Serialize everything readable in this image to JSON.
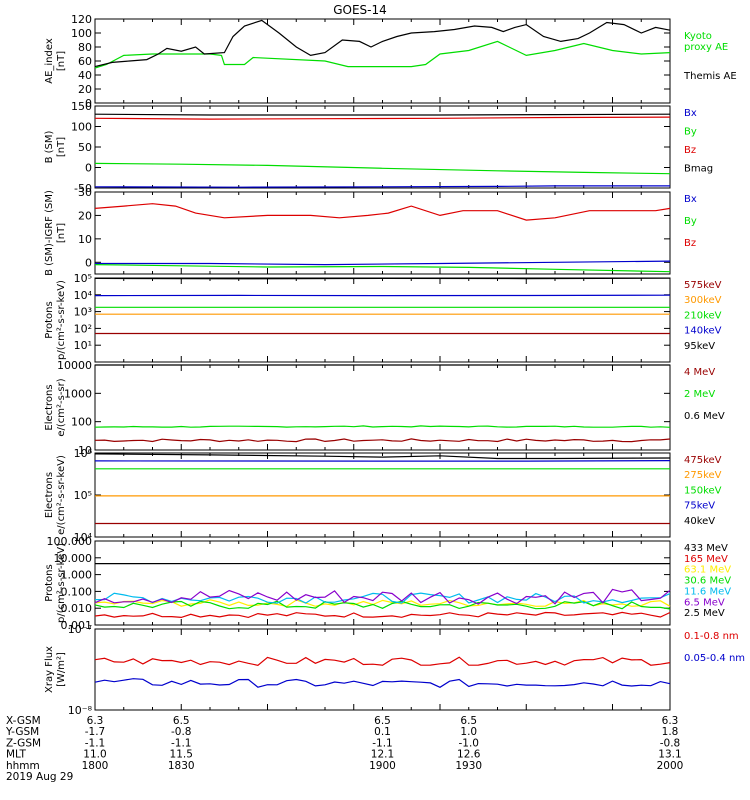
{
  "title": "GOES-14",
  "colors": {
    "black": "#000000",
    "red": "#dd0000",
    "green": "#00dd00",
    "blue": "#0000cc",
    "orange": "#ff9900",
    "yellow": "#ffee00",
    "cyan": "#00bbee",
    "purple": "#8800cc",
    "darkred": "#990000"
  },
  "chart_data": [
    {
      "type": "line",
      "id": "ae",
      "ylabel": [
        "AE_index",
        "[nT]"
      ],
      "ylim": [
        0,
        120
      ],
      "yticks": [
        "0",
        "20",
        "40",
        "60",
        "80",
        "100",
        "120"
      ],
      "xlim": [
        1800,
        2000
      ],
      "series": [
        {
          "name": "Kyoto proxy AE",
          "label_lines": [
            "Kyoto",
            "proxy AE"
          ],
          "color": "green",
          "x": [
            1800,
            1804,
            1810,
            1820,
            1840,
            1844,
            1845,
            1852,
            1855,
            1880,
            1888,
            1900,
            1910,
            1915,
            1920,
            1930,
            1940,
            1944,
            1950,
            1960,
            1970,
            1980,
            1990,
            2000
          ],
          "y": [
            50,
            55,
            68,
            70,
            70,
            68,
            55,
            55,
            65,
            60,
            52,
            52,
            52,
            55,
            70,
            75,
            88,
            80,
            68,
            75,
            85,
            75,
            70,
            72
          ]
        },
        {
          "name": "Themis AE",
          "label_lines": [
            "Themis AE"
          ],
          "color": "black",
          "x": [
            1800,
            1806,
            1812,
            1818,
            1822,
            1825,
            1830,
            1835,
            1838,
            1845,
            1848,
            1852,
            1858,
            1864,
            1870,
            1875,
            1880,
            1886,
            1892,
            1896,
            1900,
            1905,
            1910,
            1918,
            1925,
            1932,
            1938,
            1942,
            1946,
            1950,
            1956,
            1962,
            1968,
            1972,
            1978,
            1984,
            1990,
            1995,
            2000
          ],
          "y": [
            52,
            58,
            60,
            62,
            70,
            78,
            74,
            80,
            70,
            72,
            95,
            110,
            118,
            100,
            80,
            68,
            72,
            90,
            88,
            80,
            88,
            95,
            100,
            102,
            105,
            110,
            108,
            102,
            108,
            112,
            95,
            88,
            92,
            100,
            115,
            112,
            100,
            108,
            104
          ]
        }
      ]
    },
    {
      "type": "line",
      "id": "bsm",
      "ylabel": [
        "B (SM)",
        "[nT]"
      ],
      "ylim": [
        -50,
        150
      ],
      "yticks": [
        "-50",
        "0",
        "50",
        "100",
        "150"
      ],
      "xlim": [
        1800,
        2000
      ],
      "series": [
        {
          "name": "Bx",
          "color": "blue",
          "x": [
            1800,
            1850,
            1900,
            1940,
            1960,
            2000
          ],
          "y": [
            -47,
            -48,
            -47,
            -46,
            -45,
            -45
          ]
        },
        {
          "name": "By",
          "color": "green",
          "x": [
            1800,
            1830,
            1860,
            1900,
            1940,
            1970,
            2000
          ],
          "y": [
            10,
            8,
            5,
            -2,
            -8,
            -12,
            -15
          ]
        },
        {
          "name": "Bz",
          "color": "red",
          "x": [
            1800,
            1840,
            1880,
            1920,
            1960,
            2000
          ],
          "y": [
            120,
            118,
            119,
            120,
            122,
            123
          ]
        },
        {
          "name": "Bmag",
          "color": "black",
          "x": [
            1800,
            1840,
            1880,
            1920,
            1960,
            2000
          ],
          "y": [
            130,
            128,
            128,
            128,
            129,
            130
          ]
        }
      ]
    },
    {
      "type": "line",
      "id": "bigrf",
      "ylabel": [
        "B (SM)-IGRF (SM)",
        "[nT]"
      ],
      "ylim": [
        -5,
        30
      ],
      "yticks": [
        "0",
        "10",
        "20",
        "30"
      ],
      "xlim": [
        1800,
        2000
      ],
      "series": [
        {
          "name": "Bx",
          "color": "blue",
          "x": [
            1800,
            1840,
            1880,
            1920,
            1960,
            2000
          ],
          "y": [
            -0.5,
            -0.5,
            -1,
            -0.5,
            0,
            0.5
          ]
        },
        {
          "name": "By",
          "color": "green",
          "x": [
            1800,
            1830,
            1860,
            1900,
            1930,
            1960,
            2000
          ],
          "y": [
            -1,
            -1.5,
            -2,
            -1.8,
            -2.2,
            -3,
            -4
          ]
        },
        {
          "name": "Bz",
          "color": "red",
          "x": [
            1800,
            1810,
            1820,
            1828,
            1835,
            1845,
            1860,
            1875,
            1885,
            1895,
            1902,
            1910,
            1920,
            1928,
            1940,
            1950,
            1960,
            1972,
            1985,
            1995,
            2000
          ],
          "y": [
            23,
            24,
            25,
            24,
            21,
            19,
            20,
            20,
            19,
            20,
            21,
            24,
            20,
            22,
            22,
            18,
            19,
            22,
            22,
            22,
            23
          ]
        }
      ]
    },
    {
      "type": "line",
      "id": "protons-low",
      "log": true,
      "ylabel": [
        "Protons",
        "p/(cm²-s-sr-keV)"
      ],
      "ylim": [
        1,
        100000
      ],
      "yticks": [
        {
          "v": 10,
          "t": "10¹"
        },
        {
          "v": 100,
          "t": "10²"
        },
        {
          "v": 1000,
          "t": "10³"
        },
        {
          "v": 10000,
          "t": "10⁴"
        },
        {
          "v": 100000,
          "t": "10⁵"
        }
      ],
      "xlim": [
        1800,
        2000
      ],
      "series": [
        {
          "name": "575keV",
          "color": "darkred",
          "x": [
            1800,
            2000
          ],
          "y": [
            50,
            50
          ]
        },
        {
          "name": "300keV",
          "color": "orange",
          "x": [
            1800,
            2000
          ],
          "y": [
            700,
            700
          ]
        },
        {
          "name": "210keV",
          "color": "green",
          "x": [
            1800,
            2000
          ],
          "y": [
            1800,
            1800
          ]
        },
        {
          "name": "140keV",
          "color": "blue",
          "x": [
            1800,
            1850,
            1900,
            1950,
            2000
          ],
          "y": [
            9000,
            9200,
            9000,
            9100,
            9500
          ]
        },
        {
          "name": "95keV",
          "color": "black",
          "x": [
            1800,
            1850,
            1900,
            1950,
            2000
          ],
          "y": [
            95000,
            90000,
            95000,
            92000,
            97000
          ]
        }
      ]
    },
    {
      "type": "line",
      "id": "electrons-mev",
      "log": true,
      "ylabel": [
        "Electrons",
        "e/(cm²-s-sr)"
      ],
      "ylim": [
        10,
        10000
      ],
      "yticks": [
        {
          "v": 10,
          "t": "10"
        },
        {
          "v": 100,
          "t": "100"
        },
        {
          "v": 1000,
          "t": "1000"
        },
        {
          "v": 10000,
          "t": "10000"
        }
      ],
      "xlim": [
        1800,
        2000
      ],
      "series": [
        {
          "name": "4 MeV",
          "color": "darkred",
          "x": [
            1800,
            1900,
            2000
          ],
          "y": [
            22,
            22,
            22
          ],
          "noise": 0.05
        },
        {
          "name": "2 MeV",
          "color": "green",
          "x": [
            1800,
            1900,
            2000
          ],
          "y": [
            65,
            68,
            66
          ],
          "noise": 0.02
        },
        {
          "name": "0.6 MeV",
          "color": "black",
          "x": [
            1800,
            1900,
            2000
          ],
          "y": [
            10000,
            10000,
            10000
          ]
        }
      ]
    },
    {
      "type": "line",
      "id": "electrons-kev",
      "log": true,
      "ylabel": [
        "Electrons",
        "e/(cm²-s-sr-keV)"
      ],
      "ylim": [
        10000,
        1000000
      ],
      "yticks": [
        {
          "v": 10000,
          "t": "10⁴"
        },
        {
          "v": 100000,
          "t": "10⁵"
        },
        {
          "v": 1000000,
          "t": "10⁶"
        }
      ],
      "xlim": [
        1800,
        2000
      ],
      "series": [
        {
          "name": "475keV",
          "color": "darkred",
          "x": [
            1800,
            2000
          ],
          "y": [
            21000,
            21000
          ]
        },
        {
          "name": "275keV",
          "color": "orange",
          "x": [
            1800,
            2000
          ],
          "y": [
            95000,
            95000
          ]
        },
        {
          "name": "150keV",
          "color": "green",
          "x": [
            1800,
            2000
          ],
          "y": [
            420000,
            420000
          ]
        },
        {
          "name": "75keV",
          "color": "blue",
          "x": [
            1800,
            1900,
            1950,
            2000
          ],
          "y": [
            650000,
            640000,
            640000,
            660000
          ]
        },
        {
          "name": "40keV",
          "color": "black",
          "x": [
            1800,
            1840,
            1880,
            1900,
            1920,
            1940,
            1960,
            2000
          ],
          "y": [
            950000,
            900000,
            840000,
            800000,
            860000,
            740000,
            740000,
            760000
          ]
        }
      ]
    },
    {
      "type": "line",
      "id": "protons-mev",
      "log": true,
      "ylabel": [
        "Protons",
        "p/(cm²-s-sr-keV)"
      ],
      "ylim": [
        0.001,
        100
      ],
      "yticks": [
        {
          "v": 0.001,
          "t": "0.001"
        },
        {
          "v": 0.01,
          "t": "0.010"
        },
        {
          "v": 0.1,
          "t": "0.100"
        },
        {
          "v": 1,
          "t": "1.000"
        },
        {
          "v": 10,
          "t": "10.000"
        },
        {
          "v": 100,
          "t": "100.000"
        }
      ],
      "xlim": [
        1800,
        2000
      ],
      "series": [
        {
          "name": "433 MeV",
          "color": "black",
          "x": [
            1800,
            1900,
            2000
          ],
          "y": [
            4.5,
            4.6,
            4.5
          ]
        },
        {
          "name": "165 MeV",
          "color": "red",
          "x": [
            1800,
            1900,
            2000
          ],
          "y": [
            0.004,
            0.004,
            0.004
          ],
          "noise": 0.15
        },
        {
          "name": "63.1 MeV",
          "color": "yellow",
          "x": [
            1800,
            1900,
            2000
          ],
          "y": [
            0.02,
            0.02,
            0.02
          ],
          "noise": 0.2
        },
        {
          "name": "30.6 MeV",
          "color": "green",
          "x": [
            1800,
            1900,
            2000
          ],
          "y": [
            0.015,
            0.015,
            0.015
          ],
          "noise": 0.25
        },
        {
          "name": "11.6 MeV",
          "color": "cyan",
          "x": [
            1800,
            1900,
            2000
          ],
          "y": [
            0.04,
            0.04,
            0.04
          ],
          "noise": 0.3
        },
        {
          "name": "6.5 MeV",
          "color": "purple",
          "x": [
            1800,
            1900,
            2000
          ],
          "y": [
            0.05,
            0.05,
            0.05
          ],
          "noise": 0.45
        },
        {
          "name": "2.5 MeV",
          "color": "black",
          "x": [
            1800,
            1900,
            2000
          ],
          "y": [
            4.5,
            4.5,
            4.5
          ],
          "hide": true
        }
      ]
    },
    {
      "type": "line",
      "id": "xray",
      "log": true,
      "ylabel": [
        "Xray Flux",
        "[W/m²]"
      ],
      "ylim": [
        1e-08,
        1e-07
      ],
      "yticks": [
        {
          "v": 1e-08,
          "t": "10⁻⁸"
        },
        {
          "v": 1e-07,
          "t": "10⁻⁷"
        }
      ],
      "xlim": [
        1800,
        2000
      ],
      "series": [
        {
          "name": "0.1-0.8 nm",
          "color": "red",
          "x": [
            1800,
            1900,
            2000
          ],
          "y": [
            4e-08,
            4e-08,
            4e-08
          ],
          "noise": 0.05
        },
        {
          "name": "0.05-0.4 nm",
          "color": "blue",
          "x": [
            1800,
            1900,
            2000
          ],
          "y": [
            2.2e-08,
            2.1e-08,
            2.2e-08
          ],
          "noise": 0.05
        }
      ]
    }
  ],
  "ephemeris": {
    "labels": [
      "X-GSM",
      "Y-GSM",
      "Z-GSM",
      "MLT",
      "hhmm",
      "2019 Aug 29"
    ],
    "columns": [
      {
        "x": 1800,
        "values": [
          "6.3",
          "-1.7",
          "-1.1",
          "11.0",
          "1800"
        ]
      },
      {
        "x": 1830,
        "values": [
          "6.5",
          "-0.8",
          "-1.1",
          "11.5",
          "1830"
        ]
      },
      {
        "x": 1900,
        "values": [
          "6.5",
          "0.1",
          "-1.1",
          "12.1",
          "1900"
        ]
      },
      {
        "x": 1930,
        "values": [
          "6.5",
          "1.0",
          "-1.0",
          "12.6",
          "1930"
        ]
      },
      {
        "x": 2000,
        "values": [
          "6.3",
          "1.8",
          "-0.8",
          "13.1",
          "2000"
        ]
      }
    ]
  }
}
